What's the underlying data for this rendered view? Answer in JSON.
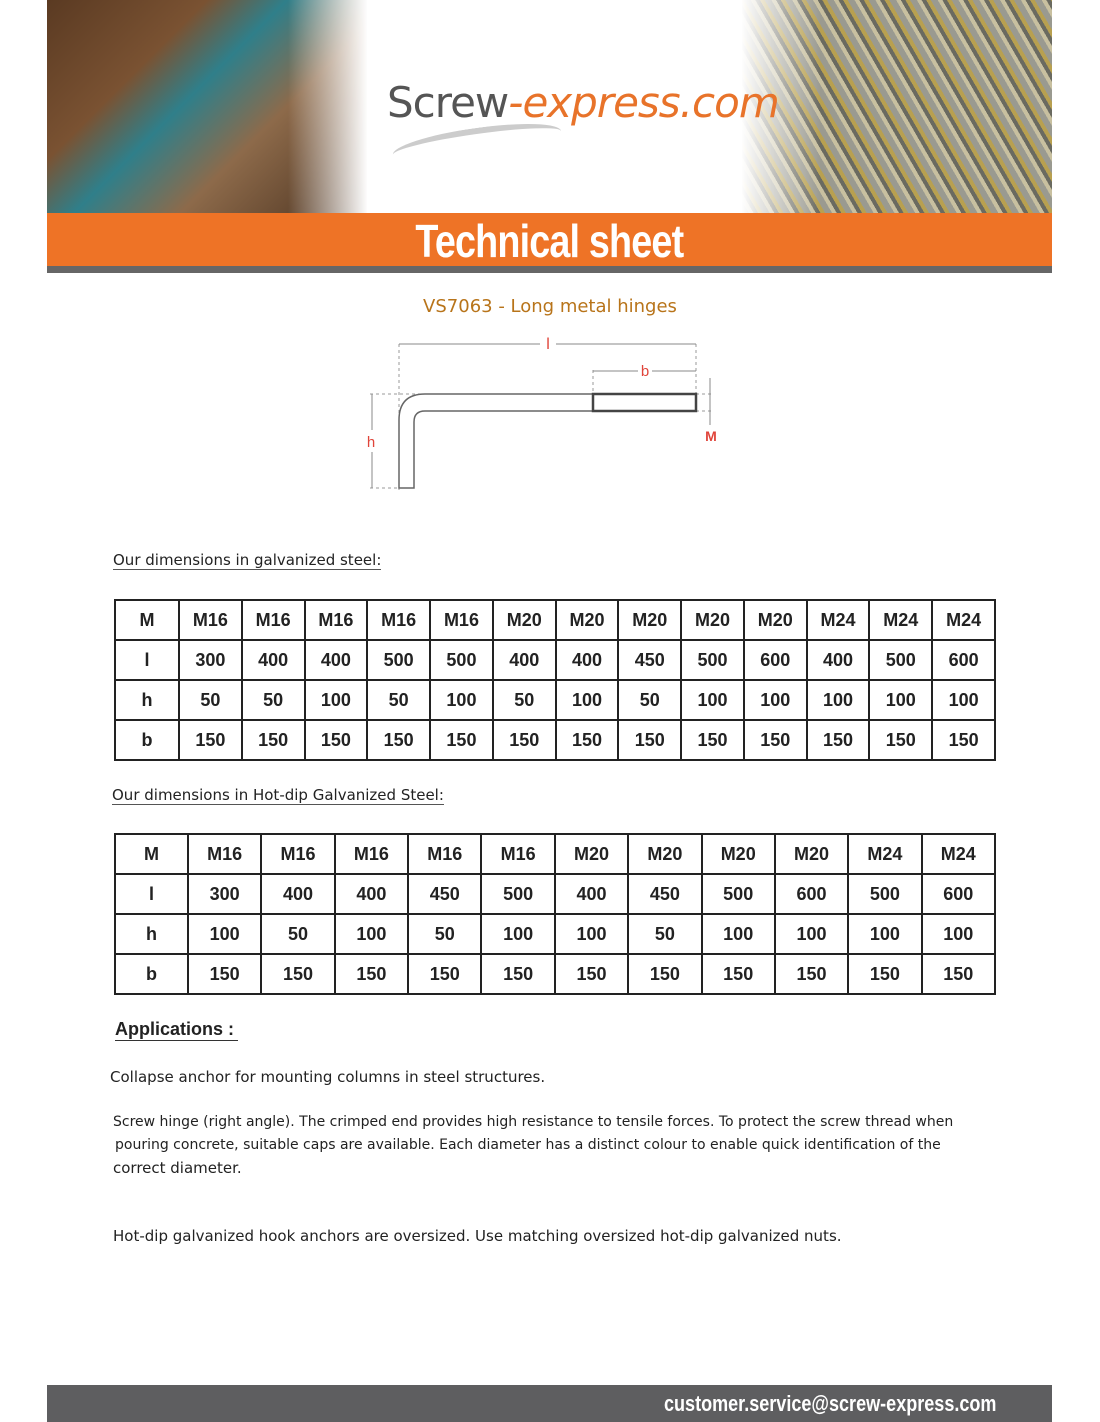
{
  "header": {
    "logo_text_part1": "Screw",
    "logo_text_part2": "-express.com",
    "banner_title": "Technical sheet"
  },
  "product": {
    "title": "VS7063 - Long metal hinges",
    "diagram_labels": {
      "l": "l",
      "b": "b",
      "h": "h",
      "M": "M"
    }
  },
  "galvanized": {
    "heading": "Our dimensions in galvanized steel:",
    "rows": [
      [
        "M",
        "M16",
        "M16",
        "M16",
        "M16",
        "M16",
        "M20",
        "M20",
        "M20",
        "M20",
        "M20",
        "M24",
        "M24",
        "M24"
      ],
      [
        "l",
        "300",
        "400",
        "400",
        "500",
        "500",
        "400",
        "400",
        "450",
        "500",
        "600",
        "400",
        "500",
        "600"
      ],
      [
        "h",
        "50",
        "50",
        "100",
        "50",
        "100",
        "50",
        "100",
        "50",
        "100",
        "100",
        "100",
        "100",
        "100"
      ],
      [
        "b",
        "150",
        "150",
        "150",
        "150",
        "150",
        "150",
        "150",
        "150",
        "150",
        "150",
        "150",
        "150",
        "150"
      ]
    ]
  },
  "hot_dip": {
    "heading": "Our dimensions in Hot-dip Galvanized Steel:",
    "rows": [
      [
        "M",
        "M16",
        "M16",
        "M16",
        "M16",
        "M16",
        "M20",
        "M20",
        "M20",
        "M20",
        "M24",
        "M24"
      ],
      [
        "l",
        "300",
        "400",
        "400",
        "450",
        "500",
        "400",
        "450",
        "500",
        "600",
        "500",
        "600"
      ],
      [
        "h",
        "100",
        "50",
        "100",
        "50",
        "100",
        "100",
        "50",
        "100",
        "100",
        "100",
        "100"
      ],
      [
        "b",
        "150",
        "150",
        "150",
        "150",
        "150",
        "150",
        "150",
        "150",
        "150",
        "150",
        "150"
      ]
    ]
  },
  "applications": {
    "heading": "Applications :",
    "p1": "Collapse anchor for mounting columns in steel structures.",
    "p2a": "Screw hinge (right angle). The crimped end provides high resistance to tensile forces. To protect the screw thread when",
    "p2b": "pouring concrete, suitable caps are available. Each diameter has a distinct colour to enable quick identification of the",
    "p2c": "correct diameter.",
    "p3": "Hot-dip galvanized hook anchors are oversized. Use matching oversized hot-dip galvanized nuts."
  },
  "footer": {
    "email": "customer.service@screw-express.com"
  },
  "colors": {
    "orange": "#ee7326",
    "product_title": "#b8741a",
    "footer": "#5e5e60",
    "dimension_labels": "#e0443a"
  }
}
